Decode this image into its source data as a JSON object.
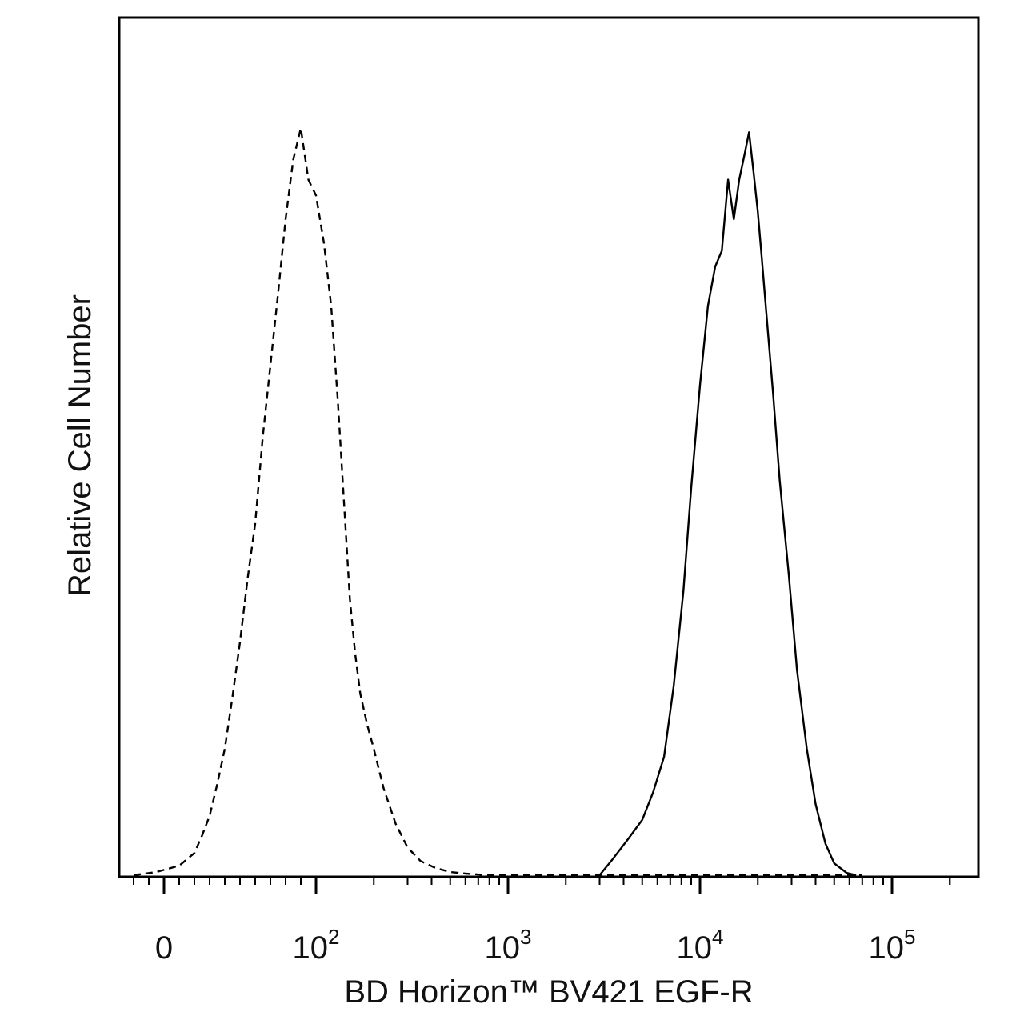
{
  "chart_data": {
    "type": "line",
    "title": "",
    "xlabel": "BD Horizon™ BV421 EGF-R",
    "ylabel": "Relative Cell Number",
    "x_scale": "biexponential",
    "xlim": [
      -60,
      250000
    ],
    "ylim": [
      0,
      100
    ],
    "grid": false,
    "legend": "none",
    "x_ticks": [
      {
        "base": "0",
        "exp": "",
        "value": 0
      },
      {
        "base": "10",
        "exp": "2",
        "value": 100
      },
      {
        "base": "10",
        "exp": "3",
        "value": 1000
      },
      {
        "base": "10",
        "exp": "4",
        "value": 10000
      },
      {
        "base": "10",
        "exp": "5",
        "value": 100000
      }
    ],
    "series": [
      {
        "style": "dashed",
        "color": "#000000",
        "x": [
          -20,
          -5,
          10,
          20,
          25,
          30,
          35,
          40,
          45,
          50,
          55,
          60,
          65,
          70,
          75,
          80,
          85,
          90,
          95,
          100,
          110,
          120,
          130,
          140,
          150,
          160,
          170,
          185,
          200,
          225,
          260,
          300,
          350,
          420,
          500,
          600,
          800,
          3000,
          10000,
          30000,
          70000
        ],
        "y": [
          0,
          0.4,
          1.2,
          2.8,
          5.0,
          7.5,
          11.5,
          16.0,
          22.5,
          29.5,
          37.5,
          44.5,
          55.5,
          64.5,
          73.5,
          83.0,
          90.5,
          94.5,
          88.0,
          86.0,
          80.0,
          72.0,
          60.0,
          47.0,
          35.0,
          28.0,
          23.0,
          19.0,
          16.0,
          11.0,
          6.5,
          3.5,
          1.8,
          0.9,
          0.4,
          0.2,
          0,
          0,
          0,
          0,
          0
        ]
      },
      {
        "style": "solid",
        "color": "#000000",
        "x": [
          3000,
          3500,
          4200,
          5000,
          5700,
          6500,
          7300,
          8200,
          9000,
          10000,
          11000,
          12000,
          13000,
          14000,
          15000,
          16000,
          17000,
          18000,
          19000,
          20000,
          21000,
          22000,
          24000,
          26000,
          29000,
          32000,
          36000,
          40000,
          45000,
          50000,
          58000,
          65000
        ],
        "y": [
          0,
          2.0,
          4.5,
          7.0,
          10.5,
          15.0,
          24.0,
          36.0,
          49.0,
          62.0,
          72.0,
          77.0,
          79.0,
          88.0,
          83.0,
          88.0,
          91.0,
          94.0,
          89.0,
          84.0,
          78.0,
          72.0,
          61.0,
          50.0,
          38.0,
          26.0,
          16.0,
          9.0,
          4.0,
          1.5,
          0.3,
          0
        ]
      }
    ]
  }
}
